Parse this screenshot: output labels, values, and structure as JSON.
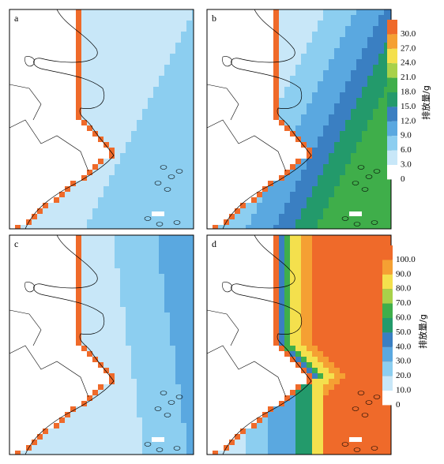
{
  "panels": [
    {
      "label": "a"
    },
    {
      "label": "b"
    },
    {
      "label": "c"
    },
    {
      "label": "d"
    }
  ],
  "legends": [
    {
      "title": "排放量/g",
      "labels": [
        "30.0",
        "27.0",
        "24.0",
        "21.0",
        "18.0",
        "15.0",
        "12.0",
        "9.0",
        "6.0",
        "3.0",
        "0"
      ],
      "colors": [
        "#ef6a2a",
        "#f5a033",
        "#f4e04d",
        "#a8d14a",
        "#3fae4a",
        "#239a6b",
        "#3a7fc2",
        "#5aa8e0",
        "#8ccef0",
        "#c8e7f8",
        "#ffffff"
      ]
    },
    {
      "title": "排放量/g",
      "labels": [
        "100.0",
        "90.0",
        "80.0",
        "70.0",
        "60.0",
        "50.0",
        "40.0",
        "30.0",
        "20.0",
        "10.0",
        "0"
      ],
      "colors": [
        "#ef6a2a",
        "#f5a033",
        "#f4e04d",
        "#a8d14a",
        "#3fae4a",
        "#239a6b",
        "#3a7fc2",
        "#5aa8e0",
        "#8ccef0",
        "#c8e7f8",
        "#ffffff"
      ]
    }
  ]
}
